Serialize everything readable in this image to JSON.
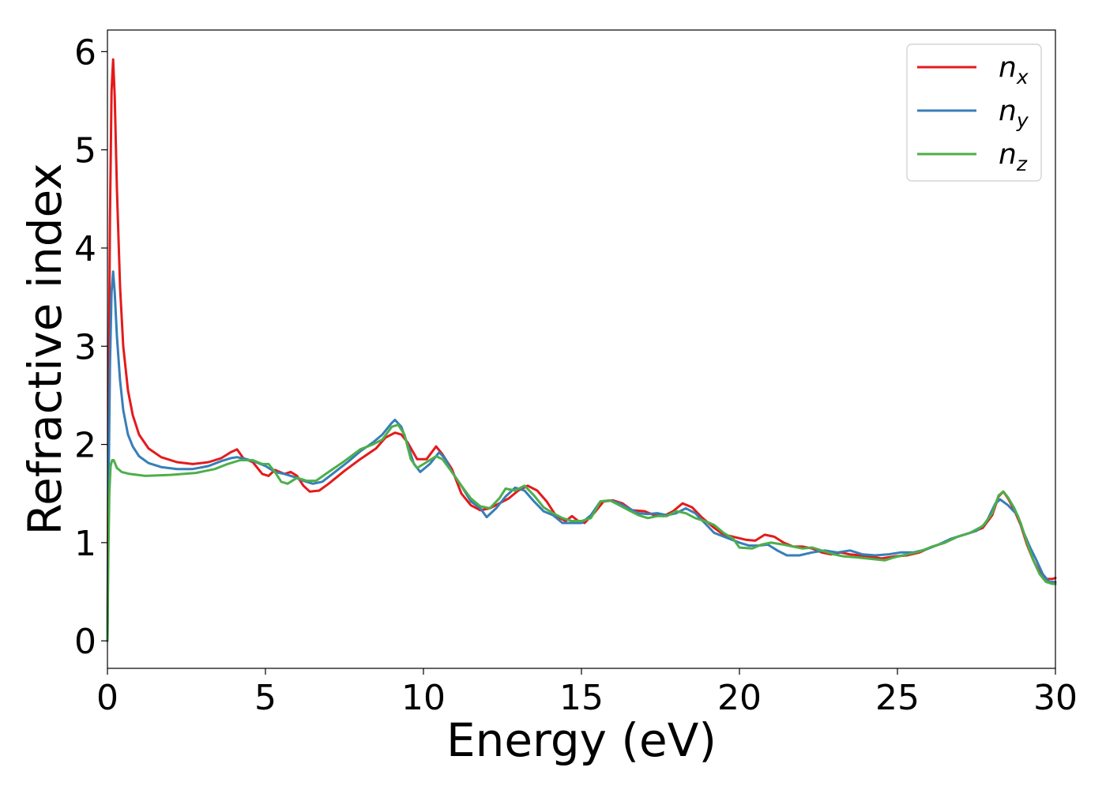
{
  "chart_data": {
    "type": "line",
    "xlabel": "Energy (eV)",
    "ylabel": "Refractive index",
    "xlim": [
      0,
      30
    ],
    "ylim": [
      -0.28,
      6.22
    ],
    "xticks": [
      0,
      5,
      10,
      15,
      20,
      25,
      30
    ],
    "yticks": [
      0,
      1,
      2,
      3,
      4,
      5,
      6
    ],
    "grid": false,
    "legend_position": "top-right",
    "series": [
      {
        "name": "n",
        "subscript": "x",
        "color": "#e41a1c",
        "points": [
          [
            0,
            0
          ],
          [
            0.03,
            2.0
          ],
          [
            0.08,
            4.3
          ],
          [
            0.13,
            5.6
          ],
          [
            0.18,
            5.92
          ],
          [
            0.23,
            5.55
          ],
          [
            0.3,
            4.6
          ],
          [
            0.4,
            3.6
          ],
          [
            0.5,
            3.0
          ],
          [
            0.65,
            2.55
          ],
          [
            0.8,
            2.3
          ],
          [
            1.0,
            2.1
          ],
          [
            1.3,
            1.96
          ],
          [
            1.7,
            1.87
          ],
          [
            2.2,
            1.82
          ],
          [
            2.7,
            1.8
          ],
          [
            3.2,
            1.82
          ],
          [
            3.6,
            1.86
          ],
          [
            3.9,
            1.92
          ],
          [
            4.1,
            1.95
          ],
          [
            4.3,
            1.86
          ],
          [
            4.6,
            1.82
          ],
          [
            4.9,
            1.7
          ],
          [
            5.1,
            1.68
          ],
          [
            5.3,
            1.74
          ],
          [
            5.6,
            1.7
          ],
          [
            5.8,
            1.72
          ],
          [
            6.0,
            1.68
          ],
          [
            6.2,
            1.58
          ],
          [
            6.4,
            1.52
          ],
          [
            6.7,
            1.53
          ],
          [
            7.0,
            1.6
          ],
          [
            7.5,
            1.73
          ],
          [
            8.0,
            1.85
          ],
          [
            8.5,
            1.96
          ],
          [
            8.8,
            2.07
          ],
          [
            9.1,
            2.12
          ],
          [
            9.3,
            2.1
          ],
          [
            9.5,
            2.02
          ],
          [
            9.8,
            1.85
          ],
          [
            10.1,
            1.85
          ],
          [
            10.4,
            1.98
          ],
          [
            10.6,
            1.9
          ],
          [
            10.9,
            1.75
          ],
          [
            11.2,
            1.5
          ],
          [
            11.5,
            1.38
          ],
          [
            11.8,
            1.33
          ],
          [
            12.1,
            1.35
          ],
          [
            12.4,
            1.4
          ],
          [
            12.7,
            1.45
          ],
          [
            13.0,
            1.53
          ],
          [
            13.3,
            1.58
          ],
          [
            13.6,
            1.53
          ],
          [
            13.9,
            1.42
          ],
          [
            14.2,
            1.27
          ],
          [
            14.5,
            1.22
          ],
          [
            14.7,
            1.27
          ],
          [
            14.9,
            1.22
          ],
          [
            15.1,
            1.2
          ],
          [
            15.4,
            1.3
          ],
          [
            15.7,
            1.42
          ],
          [
            16.0,
            1.43
          ],
          [
            16.3,
            1.4
          ],
          [
            16.6,
            1.33
          ],
          [
            17.0,
            1.32
          ],
          [
            17.3,
            1.28
          ],
          [
            17.6,
            1.27
          ],
          [
            17.9,
            1.32
          ],
          [
            18.2,
            1.4
          ],
          [
            18.5,
            1.36
          ],
          [
            18.8,
            1.26
          ],
          [
            19.2,
            1.15
          ],
          [
            19.5,
            1.08
          ],
          [
            19.8,
            1.06
          ],
          [
            20.2,
            1.03
          ],
          [
            20.5,
            1.02
          ],
          [
            20.8,
            1.08
          ],
          [
            21.1,
            1.06
          ],
          [
            21.4,
            1.0
          ],
          [
            21.7,
            0.96
          ],
          [
            22.0,
            0.96
          ],
          [
            22.3,
            0.94
          ],
          [
            22.6,
            0.9
          ],
          [
            22.9,
            0.88
          ],
          [
            23.2,
            0.9
          ],
          [
            23.5,
            0.88
          ],
          [
            23.8,
            0.87
          ],
          [
            24.1,
            0.86
          ],
          [
            24.5,
            0.84
          ],
          [
            24.9,
            0.86
          ],
          [
            25.3,
            0.87
          ],
          [
            25.7,
            0.9
          ],
          [
            26.1,
            0.96
          ],
          [
            26.5,
            1.0
          ],
          [
            26.9,
            1.06
          ],
          [
            27.3,
            1.1
          ],
          [
            27.7,
            1.15
          ],
          [
            28.0,
            1.28
          ],
          [
            28.2,
            1.47
          ],
          [
            28.35,
            1.52
          ],
          [
            28.5,
            1.45
          ],
          [
            28.7,
            1.33
          ],
          [
            28.9,
            1.18
          ],
          [
            29.1,
            0.98
          ],
          [
            29.3,
            0.82
          ],
          [
            29.5,
            0.7
          ],
          [
            29.7,
            0.63
          ],
          [
            29.9,
            0.63
          ],
          [
            30,
            0.64
          ]
        ]
      },
      {
        "name": "n",
        "subscript": "y",
        "color": "#377eb8",
        "points": [
          [
            0,
            0
          ],
          [
            0.03,
            1.4
          ],
          [
            0.08,
            2.8
          ],
          [
            0.13,
            3.55
          ],
          [
            0.18,
            3.76
          ],
          [
            0.23,
            3.55
          ],
          [
            0.3,
            3.1
          ],
          [
            0.4,
            2.65
          ],
          [
            0.5,
            2.35
          ],
          [
            0.65,
            2.1
          ],
          [
            0.8,
            1.98
          ],
          [
            1.0,
            1.88
          ],
          [
            1.3,
            1.81
          ],
          [
            1.7,
            1.77
          ],
          [
            2.2,
            1.75
          ],
          [
            2.7,
            1.75
          ],
          [
            3.2,
            1.78
          ],
          [
            3.6,
            1.83
          ],
          [
            3.9,
            1.86
          ],
          [
            4.1,
            1.87
          ],
          [
            4.4,
            1.85
          ],
          [
            4.7,
            1.82
          ],
          [
            5.0,
            1.78
          ],
          [
            5.3,
            1.72
          ],
          [
            5.6,
            1.7
          ],
          [
            5.9,
            1.67
          ],
          [
            6.2,
            1.63
          ],
          [
            6.5,
            1.6
          ],
          [
            6.8,
            1.62
          ],
          [
            7.2,
            1.72
          ],
          [
            7.6,
            1.82
          ],
          [
            8.0,
            1.93
          ],
          [
            8.4,
            2.02
          ],
          [
            8.7,
            2.1
          ],
          [
            9.0,
            2.22
          ],
          [
            9.1,
            2.25
          ],
          [
            9.3,
            2.18
          ],
          [
            9.5,
            2.0
          ],
          [
            9.7,
            1.8
          ],
          [
            9.9,
            1.72
          ],
          [
            10.2,
            1.8
          ],
          [
            10.5,
            1.92
          ],
          [
            10.7,
            1.85
          ],
          [
            10.9,
            1.72
          ],
          [
            11.2,
            1.58
          ],
          [
            11.5,
            1.42
          ],
          [
            11.8,
            1.35
          ],
          [
            12.0,
            1.26
          ],
          [
            12.3,
            1.35
          ],
          [
            12.6,
            1.47
          ],
          [
            12.9,
            1.56
          ],
          [
            13.2,
            1.53
          ],
          [
            13.5,
            1.42
          ],
          [
            13.8,
            1.32
          ],
          [
            14.1,
            1.28
          ],
          [
            14.4,
            1.2
          ],
          [
            14.7,
            1.2
          ],
          [
            15.0,
            1.2
          ],
          [
            15.3,
            1.28
          ],
          [
            15.6,
            1.42
          ],
          [
            15.9,
            1.43
          ],
          [
            16.2,
            1.4
          ],
          [
            16.5,
            1.35
          ],
          [
            16.8,
            1.3
          ],
          [
            17.1,
            1.29
          ],
          [
            17.4,
            1.3
          ],
          [
            17.7,
            1.28
          ],
          [
            18.0,
            1.3
          ],
          [
            18.3,
            1.35
          ],
          [
            18.6,
            1.3
          ],
          [
            18.9,
            1.2
          ],
          [
            19.2,
            1.1
          ],
          [
            19.6,
            1.05
          ],
          [
            20.0,
            1.0
          ],
          [
            20.3,
            0.97
          ],
          [
            20.6,
            0.97
          ],
          [
            20.9,
            0.98
          ],
          [
            21.2,
            0.92
          ],
          [
            21.5,
            0.87
          ],
          [
            21.9,
            0.87
          ],
          [
            22.3,
            0.9
          ],
          [
            22.7,
            0.92
          ],
          [
            23.1,
            0.9
          ],
          [
            23.5,
            0.92
          ],
          [
            23.9,
            0.88
          ],
          [
            24.3,
            0.87
          ],
          [
            24.7,
            0.88
          ],
          [
            25.1,
            0.9
          ],
          [
            25.5,
            0.9
          ],
          [
            25.9,
            0.93
          ],
          [
            26.3,
            0.98
          ],
          [
            26.7,
            1.04
          ],
          [
            27.1,
            1.08
          ],
          [
            27.5,
            1.12
          ],
          [
            27.8,
            1.2
          ],
          [
            28.1,
            1.4
          ],
          [
            28.25,
            1.44
          ],
          [
            28.5,
            1.38
          ],
          [
            28.8,
            1.28
          ],
          [
            29.0,
            1.1
          ],
          [
            29.2,
            0.95
          ],
          [
            29.4,
            0.82
          ],
          [
            29.6,
            0.68
          ],
          [
            29.8,
            0.6
          ],
          [
            30,
            0.6
          ]
        ]
      },
      {
        "name": "n",
        "subscript": "z",
        "color": "#4daf4a",
        "points": [
          [
            0,
            0
          ],
          [
            0.03,
            0.9
          ],
          [
            0.06,
            1.5
          ],
          [
            0.1,
            1.78
          ],
          [
            0.15,
            1.84
          ],
          [
            0.2,
            1.84
          ],
          [
            0.3,
            1.76
          ],
          [
            0.45,
            1.72
          ],
          [
            0.7,
            1.7
          ],
          [
            1.2,
            1.68
          ],
          [
            2.0,
            1.69
          ],
          [
            2.8,
            1.71
          ],
          [
            3.4,
            1.75
          ],
          [
            3.8,
            1.8
          ],
          [
            4.2,
            1.84
          ],
          [
            4.6,
            1.84
          ],
          [
            4.9,
            1.8
          ],
          [
            5.1,
            1.8
          ],
          [
            5.3,
            1.72
          ],
          [
            5.5,
            1.62
          ],
          [
            5.7,
            1.6
          ],
          [
            6.0,
            1.66
          ],
          [
            6.3,
            1.63
          ],
          [
            6.6,
            1.63
          ],
          [
            7.0,
            1.72
          ],
          [
            7.5,
            1.83
          ],
          [
            8.0,
            1.95
          ],
          [
            8.4,
            2.0
          ],
          [
            8.7,
            2.05
          ],
          [
            9.0,
            2.18
          ],
          [
            9.2,
            2.2
          ],
          [
            9.4,
            2.1
          ],
          [
            9.6,
            1.85
          ],
          [
            9.8,
            1.76
          ],
          [
            10.1,
            1.82
          ],
          [
            10.4,
            1.88
          ],
          [
            10.6,
            1.85
          ],
          [
            10.9,
            1.72
          ],
          [
            11.2,
            1.58
          ],
          [
            11.5,
            1.45
          ],
          [
            11.8,
            1.37
          ],
          [
            12.1,
            1.35
          ],
          [
            12.4,
            1.45
          ],
          [
            12.6,
            1.55
          ],
          [
            12.9,
            1.53
          ],
          [
            13.2,
            1.58
          ],
          [
            13.5,
            1.48
          ],
          [
            13.8,
            1.36
          ],
          [
            14.1,
            1.3
          ],
          [
            14.4,
            1.25
          ],
          [
            14.7,
            1.22
          ],
          [
            15.0,
            1.22
          ],
          [
            15.3,
            1.25
          ],
          [
            15.6,
            1.42
          ],
          [
            15.9,
            1.43
          ],
          [
            16.2,
            1.38
          ],
          [
            16.5,
            1.33
          ],
          [
            16.8,
            1.28
          ],
          [
            17.1,
            1.25
          ],
          [
            17.4,
            1.27
          ],
          [
            17.7,
            1.27
          ],
          [
            18.0,
            1.32
          ],
          [
            18.3,
            1.3
          ],
          [
            18.6,
            1.25
          ],
          [
            18.9,
            1.22
          ],
          [
            19.2,
            1.18
          ],
          [
            19.5,
            1.1
          ],
          [
            19.8,
            1.04
          ],
          [
            20.0,
            0.95
          ],
          [
            20.4,
            0.94
          ],
          [
            20.7,
            0.98
          ],
          [
            21.0,
            1.0
          ],
          [
            21.4,
            0.98
          ],
          [
            21.7,
            0.96
          ],
          [
            22.0,
            0.94
          ],
          [
            22.3,
            0.95
          ],
          [
            22.6,
            0.92
          ],
          [
            23.0,
            0.88
          ],
          [
            23.3,
            0.86
          ],
          [
            23.7,
            0.85
          ],
          [
            24.0,
            0.84
          ],
          [
            24.3,
            0.83
          ],
          [
            24.6,
            0.82
          ],
          [
            24.9,
            0.85
          ],
          [
            25.3,
            0.88
          ],
          [
            25.7,
            0.91
          ],
          [
            26.1,
            0.96
          ],
          [
            26.5,
            1.0
          ],
          [
            26.9,
            1.06
          ],
          [
            27.3,
            1.1
          ],
          [
            27.7,
            1.17
          ],
          [
            28.0,
            1.3
          ],
          [
            28.2,
            1.48
          ],
          [
            28.35,
            1.52
          ],
          [
            28.5,
            1.46
          ],
          [
            28.7,
            1.35
          ],
          [
            28.9,
            1.2
          ],
          [
            29.1,
            1.0
          ],
          [
            29.3,
            0.82
          ],
          [
            29.5,
            0.68
          ],
          [
            29.7,
            0.6
          ],
          [
            29.9,
            0.58
          ],
          [
            30,
            0.58
          ]
        ]
      }
    ]
  }
}
